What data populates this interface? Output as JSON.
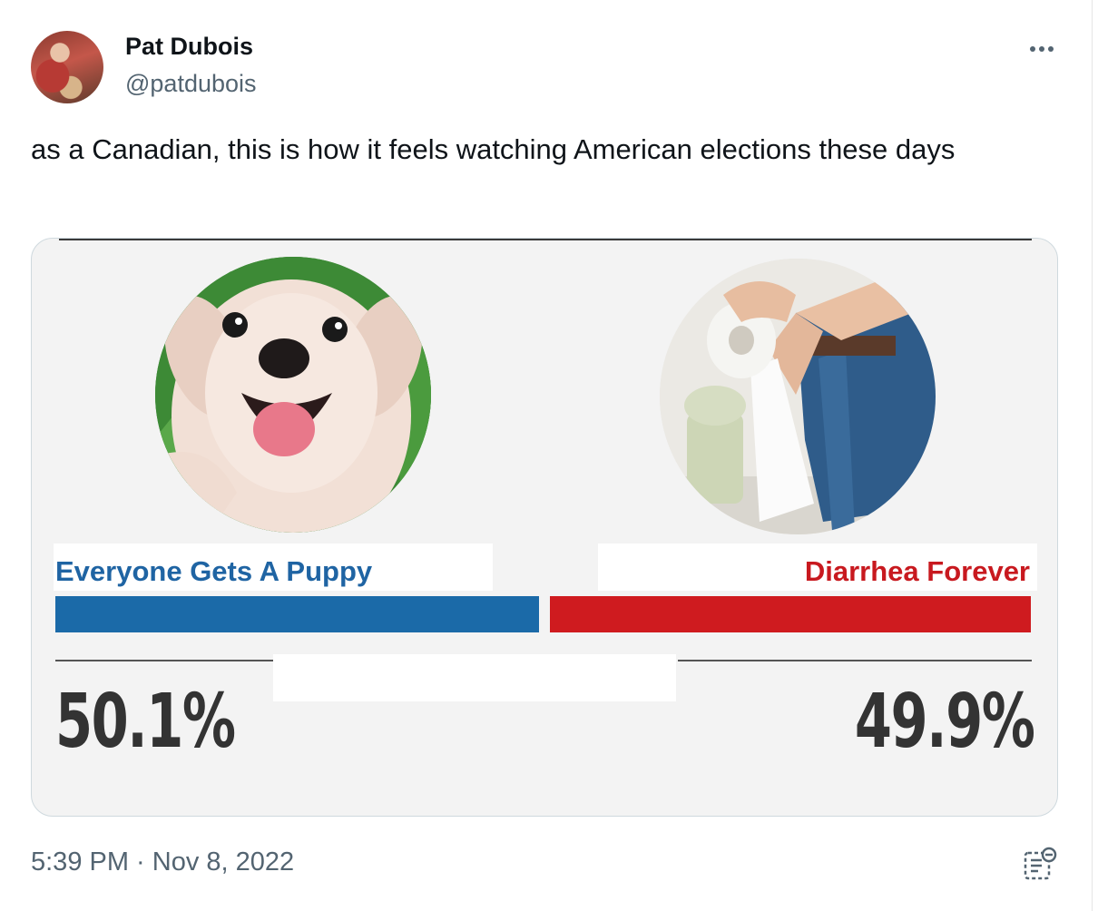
{
  "author": {
    "name": "Pat Dubois",
    "handle": "@patdubois"
  },
  "tweet": {
    "text": "as a Canadian, this is how it feels watching American elections these days",
    "timestamp": "5:39 PM · Nov 8, 2022"
  },
  "media": {
    "left_candidate": "Everyone Gets A Puppy",
    "right_candidate": "Diarrhea Forever",
    "left_percent": "50.1%",
    "right_percent": "49.9%",
    "left_share": 50.1,
    "right_share": 49.9,
    "colors": {
      "left": "#1b6aa8",
      "right": "#cf1b1f"
    }
  },
  "icons": {
    "more": "more-horizontal-icon",
    "notes": "community-notes-icon"
  }
}
